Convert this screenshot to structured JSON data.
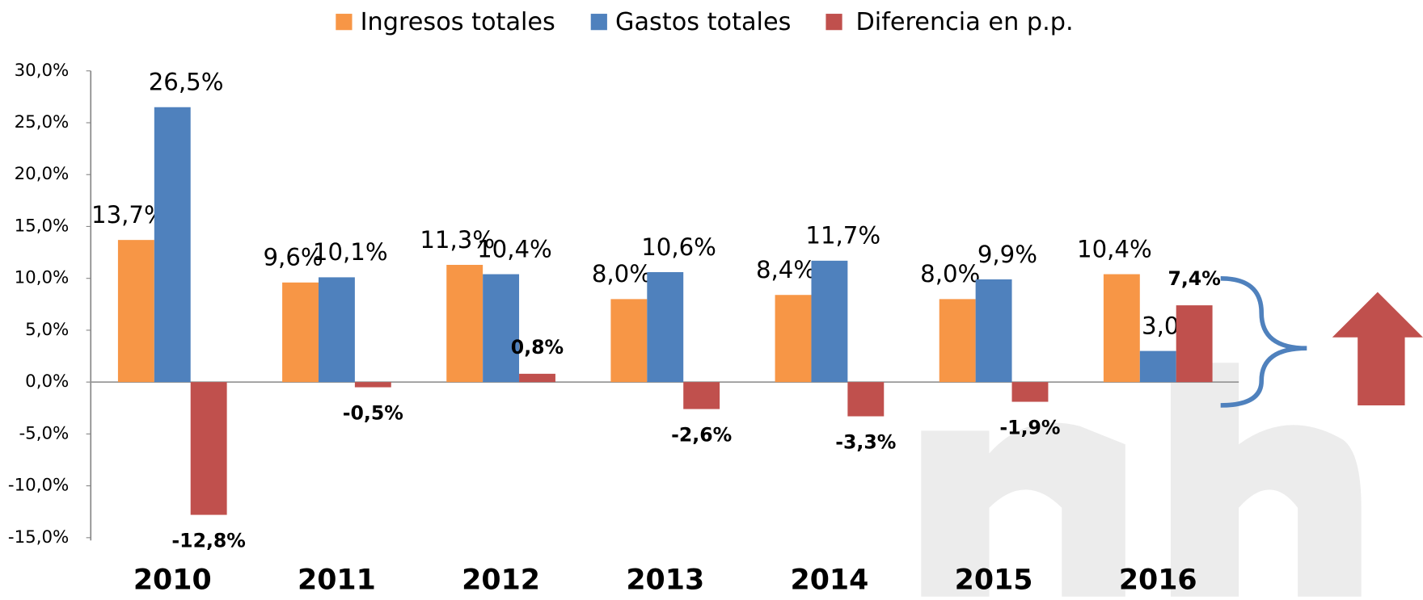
{
  "chart_data": {
    "type": "bar",
    "categories": [
      "2010",
      "2011",
      "2012",
      "2013",
      "2014",
      "2015",
      "2016"
    ],
    "series": [
      {
        "name": "Ingresos totales",
        "color": "#f79646",
        "values": [
          13.7,
          9.6,
          11.3,
          8.0,
          8.4,
          8.0,
          10.4
        ],
        "value_labels": [
          "13,7%",
          "9,6%",
          "11,3%",
          "8,0%",
          "8,4%",
          "8,0%",
          "10,4%"
        ]
      },
      {
        "name": "Gastos totales",
        "color": "#4f81bd",
        "values": [
          26.5,
          10.1,
          10.4,
          10.6,
          11.7,
          9.9,
          3.0
        ],
        "value_labels": [
          "26,5%",
          "10,1%",
          "10,4%",
          "10,6%",
          "11,7%",
          "9,9%",
          "3,0%"
        ]
      },
      {
        "name": "Diferencia en p.p.",
        "color": "#c0504d",
        "values": [
          -12.8,
          -0.5,
          0.8,
          -2.6,
          -3.3,
          -1.9,
          7.4
        ],
        "value_labels": [
          "-12,8%",
          "-0,5%",
          "0,8%",
          "-2,6%",
          "-3,3%",
          "-1,9%",
          "7,4%"
        ]
      }
    ],
    "ylim": [
      -15,
      30
    ],
    "yticks": [
      {
        "value": -15,
        "label": "-15,0%"
      },
      {
        "value": -10,
        "label": "-10,0%"
      },
      {
        "value": -5,
        "label": "-5,0%"
      },
      {
        "value": 0,
        "label": "0,0%"
      },
      {
        "value": 5,
        "label": "5,0%"
      },
      {
        "value": 10,
        "label": "10,0%"
      },
      {
        "value": 15,
        "label": "15,0%"
      },
      {
        "value": 20,
        "label": "20,0%"
      },
      {
        "value": 25,
        "label": "25,0%"
      },
      {
        "value": 30,
        "label": "30,0%"
      }
    ],
    "legend": "top"
  }
}
